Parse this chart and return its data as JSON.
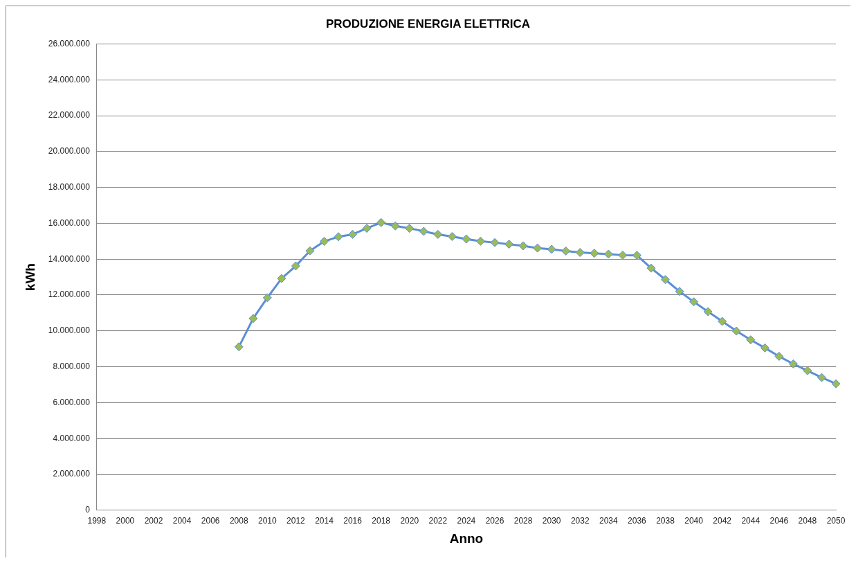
{
  "chart_data": {
    "type": "line",
    "title": "PRODUZIONE ENERGIA ELETTRICA",
    "xlabel": "Anno",
    "ylabel": "kWh",
    "categories": [
      "1998",
      null,
      "2000",
      null,
      "2002",
      null,
      "2004",
      null,
      "2006",
      null,
      "2008",
      null,
      "2010",
      null,
      "2012",
      null,
      "2014",
      null,
      "2016",
      null,
      "2018",
      null,
      "2020",
      null,
      "2022",
      null,
      "2024",
      null,
      "2026",
      null,
      "2028",
      null,
      "2030",
      null,
      "2032",
      null,
      "2034",
      null,
      "2036",
      null,
      "2038",
      null,
      "2040",
      null,
      "2042",
      null,
      "2044",
      null,
      "2046",
      null,
      "2048",
      null,
      "2050"
    ],
    "series": [
      {
        "color": "#5b8fd6",
        "values": [
          null,
          null,
          null,
          null,
          null,
          null,
          null,
          null,
          null,
          null,
          9110000,
          10690000,
          11850000,
          12920000,
          13620000,
          14460000,
          14990000,
          15250000,
          15380000,
          15720000,
          16040000,
          15850000,
          15720000,
          15550000,
          15380000,
          15260000,
          15120000,
          15000000,
          14920000,
          14830000,
          14740000,
          14620000,
          14550000,
          14450000,
          14370000,
          14330000,
          14280000,
          14220000,
          14210000,
          13500000,
          12860000,
          12200000,
          11620000,
          11070000,
          10530000,
          9990000,
          9500000,
          9050000,
          8580000,
          8160000,
          7780000,
          7400000,
          7050000
        ]
      }
    ],
    "ylim": [
      0,
      26000000
    ],
    "yticks": [
      0,
      {
        "value": 2000000,
        "label": "2.000.000"
      },
      {
        "value": 4000000,
        "label": "4.000.000"
      },
      {
        "value": 6000000,
        "label": "6.000.000"
      },
      {
        "value": 8000000,
        "label": "8.000.000"
      },
      {
        "value": 10000000,
        "label": "10.000.000"
      },
      {
        "value": 12000000,
        "label": "12.000.000"
      },
      {
        "value": 14000000,
        "label": "14.000.000"
      },
      {
        "value": 16000000,
        "label": "16.000.000"
      },
      {
        "value": 18000000,
        "label": "18.000.000"
      },
      {
        "value": 20000000,
        "label": "20.000.000"
      },
      {
        "value": 22000000,
        "label": "22.000.000"
      },
      {
        "value": 24000000,
        "label": "24.000.000"
      },
      {
        "value": 26000000,
        "label": "26.000.000"
      }
    ],
    "grid": "y",
    "legend": false,
    "marker": "diamond",
    "line_style": "solid"
  }
}
